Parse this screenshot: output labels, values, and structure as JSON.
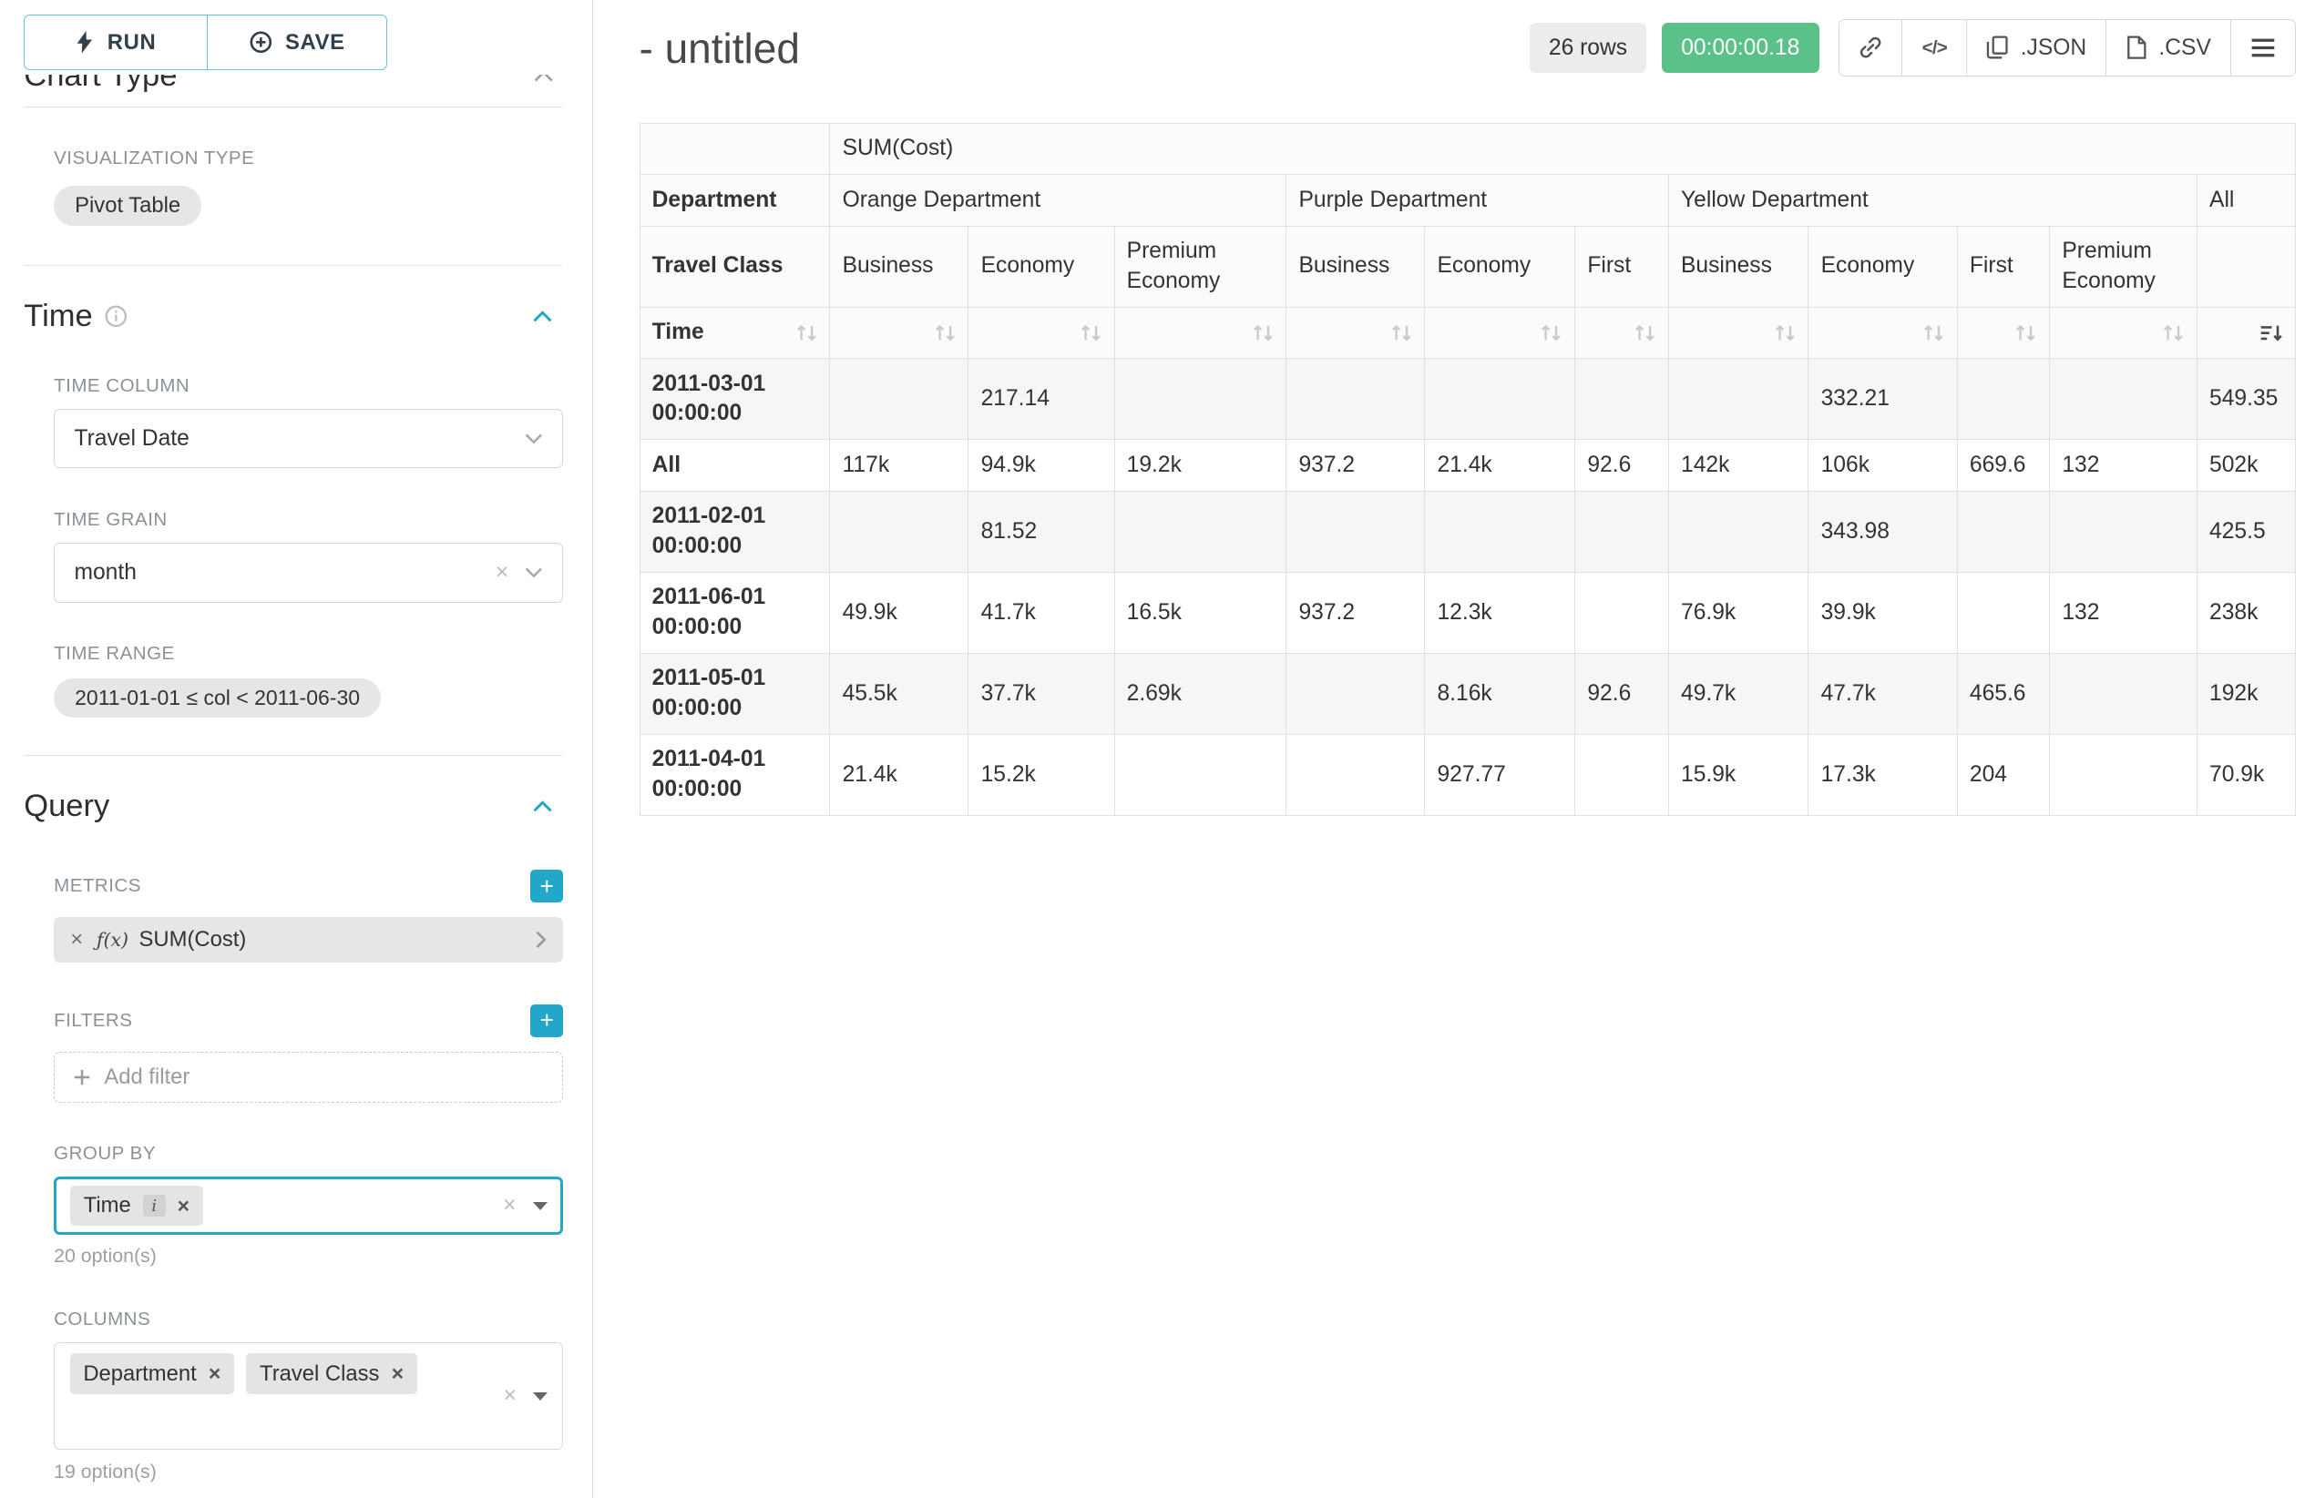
{
  "colors": {
    "primary": "#20A7C9",
    "success": "#5AC189"
  },
  "sidebar": {
    "run_label": "RUN",
    "save_label": "SAVE",
    "chart_type_heading": "Chart Type",
    "viz": {
      "label": "VISUALIZATION TYPE",
      "value": "Pivot Table"
    },
    "time": {
      "heading": "Time",
      "time_column": {
        "label": "TIME COLUMN",
        "value": "Travel Date"
      },
      "time_grain": {
        "label": "TIME GRAIN",
        "value": "month"
      },
      "time_range": {
        "label": "TIME RANGE",
        "value": "2011-01-01 ≤ col < 2011-06-30"
      }
    },
    "query": {
      "heading": "Query",
      "metrics_label": "METRICS",
      "metric_fx": "ƒ(x)",
      "metric_value": "SUM(Cost)",
      "filters_label": "FILTERS",
      "add_filter_label": "Add filter",
      "group_by_label": "GROUP BY",
      "group_by_pills": [
        "Time"
      ],
      "group_by_info_badge": "i",
      "group_by_hint": "20 option(s)",
      "columns_label": "COLUMNS",
      "columns_pills": [
        "Department",
        "Travel Class"
      ],
      "columns_hint": "19 option(s)"
    }
  },
  "header": {
    "title": "- untitled",
    "rows_badge": "26 rows",
    "timer_badge": "00:00:00.18",
    "export_json_label": ".JSON",
    "export_csv_label": ".CSV"
  },
  "pivot": {
    "metric_label": "SUM(Cost)",
    "department_label": "Department",
    "travel_class_label": "Travel Class",
    "time_label": "Time",
    "all_label": "All",
    "groups": [
      {
        "name": "Orange Department",
        "classes": [
          "Business",
          "Economy",
          "Premium Economy"
        ]
      },
      {
        "name": "Purple Department",
        "classes": [
          "Business",
          "Economy",
          "First"
        ]
      },
      {
        "name": "Yellow Department",
        "classes": [
          "Business",
          "Economy",
          "First",
          "Premium Economy"
        ]
      }
    ],
    "rows": [
      {
        "time": "2011-03-01 00:00:00",
        "values": [
          "",
          "217.14",
          "",
          "",
          "",
          "",
          "",
          "332.21",
          "",
          "",
          "549.35"
        ]
      },
      {
        "time": "All",
        "values": [
          "117k",
          "94.9k",
          "19.2k",
          "937.2",
          "21.4k",
          "92.6",
          "142k",
          "106k",
          "669.6",
          "132",
          "502k"
        ]
      },
      {
        "time": "2011-02-01 00:00:00",
        "values": [
          "",
          "81.52",
          "",
          "",
          "",
          "",
          "",
          "343.98",
          "",
          "",
          "425.5"
        ]
      },
      {
        "time": "2011-06-01 00:00:00",
        "values": [
          "49.9k",
          "41.7k",
          "16.5k",
          "937.2",
          "12.3k",
          "",
          "76.9k",
          "39.9k",
          "",
          "132",
          "238k"
        ]
      },
      {
        "time": "2011-05-01 00:00:00",
        "values": [
          "45.5k",
          "37.7k",
          "2.69k",
          "",
          "8.16k",
          "92.6",
          "49.7k",
          "47.7k",
          "465.6",
          "",
          "192k"
        ]
      },
      {
        "time": "2011-04-01 00:00:00",
        "values": [
          "21.4k",
          "15.2k",
          "",
          "",
          "927.77",
          "",
          "15.9k",
          "17.3k",
          "204",
          "",
          "70.9k"
        ]
      }
    ]
  }
}
